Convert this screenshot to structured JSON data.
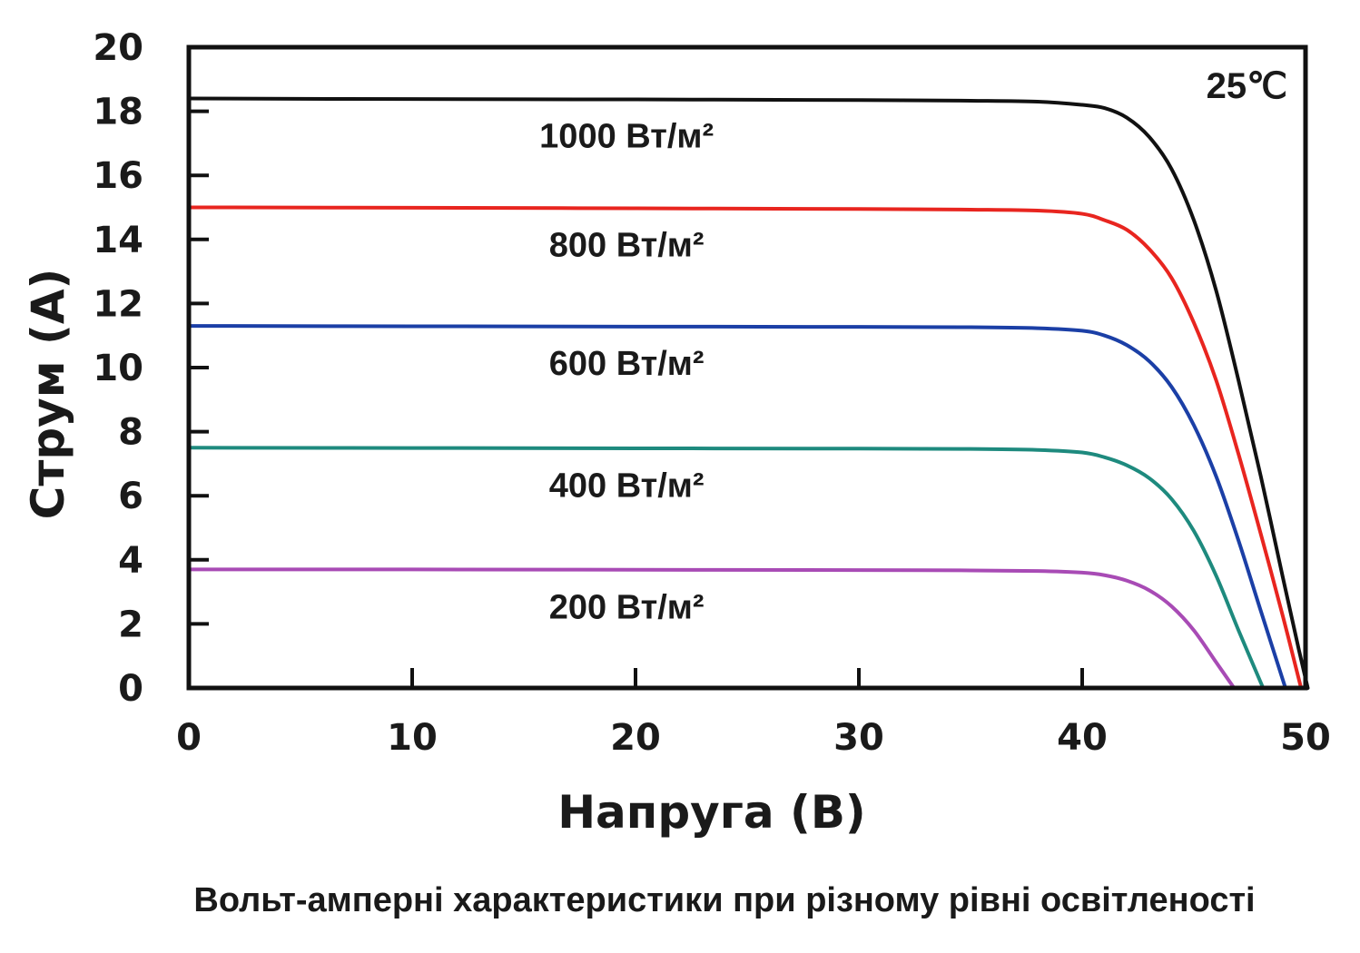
{
  "chart_data": {
    "type": "line",
    "xlabel": "Напруга  (В)",
    "ylabel": "Струм  (А)",
    "caption": "Вольт-амперні характеристики при різному рівні освітленості",
    "annotation": "25℃",
    "xlim": [
      0,
      50
    ],
    "ylim": [
      0,
      20
    ],
    "xticks": [
      0,
      10,
      20,
      30,
      40,
      50
    ],
    "yticks": [
      0,
      2,
      4,
      6,
      8,
      10,
      12,
      14,
      16,
      18,
      20
    ],
    "grid": false,
    "series": [
      {
        "label": "1000 Вт/м²",
        "color": "#111111",
        "x": [
          0,
          10,
          20,
          30,
          35,
          38,
          40,
          41,
          42,
          43,
          44,
          45,
          46,
          47,
          48,
          49,
          49.7,
          50.1
        ],
        "y": [
          18.4,
          18.38,
          18.37,
          18.35,
          18.33,
          18.3,
          18.2,
          18.1,
          17.8,
          17.2,
          16.2,
          14.6,
          12.4,
          9.6,
          6.6,
          3.4,
          1.2,
          0
        ]
      },
      {
        "label": "800 Вт/м²",
        "color": "#e8251f",
        "x": [
          0,
          10,
          20,
          30,
          35,
          38,
          40,
          41,
          42,
          43,
          44,
          45,
          46,
          47,
          48,
          49,
          49.8
        ],
        "y": [
          15.0,
          14.99,
          14.97,
          14.95,
          14.93,
          14.9,
          14.8,
          14.6,
          14.3,
          13.7,
          12.8,
          11.4,
          9.6,
          7.3,
          4.8,
          2.2,
          0
        ]
      },
      {
        "label": "600 Вт/м²",
        "color": "#1b3fa6",
        "x": [
          0,
          10,
          20,
          30,
          35,
          38,
          40,
          41,
          42,
          43,
          44,
          45,
          46,
          47,
          48,
          49.1
        ],
        "y": [
          11.3,
          11.29,
          11.28,
          11.27,
          11.26,
          11.23,
          11.15,
          11.0,
          10.7,
          10.2,
          9.4,
          8.2,
          6.6,
          4.6,
          2.4,
          0
        ]
      },
      {
        "label": "400 Вт/м²",
        "color": "#1e8a7e",
        "x": [
          0,
          10,
          20,
          30,
          35,
          38,
          40,
          41,
          42,
          43,
          44,
          45,
          46,
          47,
          48.1
        ],
        "y": [
          7.5,
          7.49,
          7.48,
          7.47,
          7.46,
          7.43,
          7.35,
          7.2,
          6.95,
          6.55,
          5.9,
          4.9,
          3.5,
          1.8,
          0
        ]
      },
      {
        "label": "200 Вт/м²",
        "color": "#a84bb5",
        "x": [
          0,
          10,
          20,
          30,
          35,
          38,
          40,
          41,
          42,
          43,
          44,
          45,
          46,
          46.8
        ],
        "y": [
          3.7,
          3.7,
          3.69,
          3.68,
          3.67,
          3.65,
          3.6,
          3.52,
          3.35,
          3.05,
          2.55,
          1.8,
          0.8,
          0
        ]
      }
    ]
  }
}
